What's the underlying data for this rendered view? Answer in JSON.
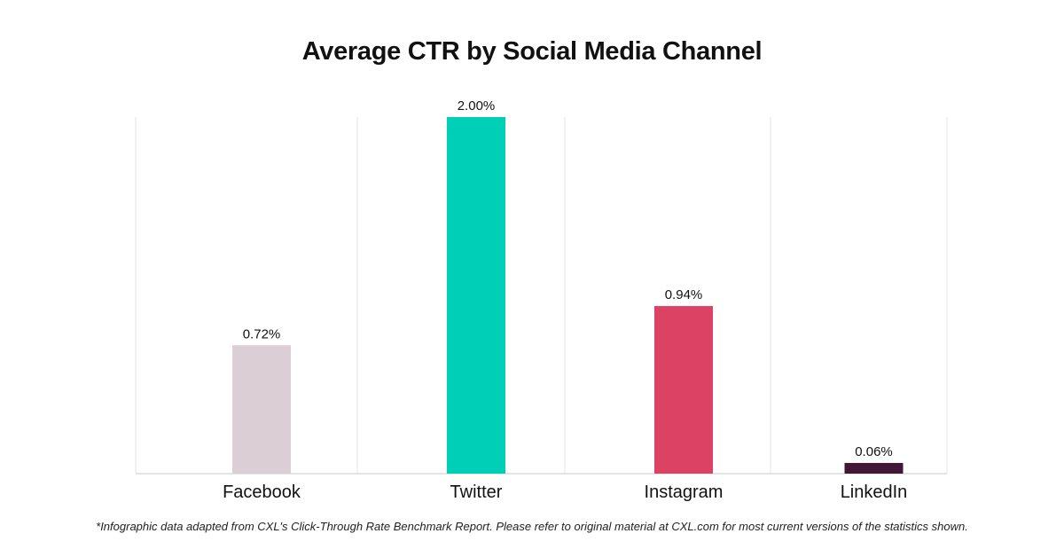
{
  "chart_data": {
    "type": "bar",
    "title": "Average CTR by Social Media Channel",
    "categories": [
      "Facebook",
      "Twitter",
      "Instagram",
      "LinkedIn"
    ],
    "values": [
      0.72,
      2.0,
      0.94,
      0.06
    ],
    "data_labels": [
      "0.72%",
      "2.00%",
      "0.94%",
      "0.06%"
    ],
    "colors": [
      "#dbcfd5",
      "#00cfb7",
      "#db4264",
      "#401735"
    ],
    "xlabel": "",
    "ylabel": "",
    "ylim": [
      0,
      2.0
    ],
    "grid": "vertical separators",
    "legend": "none"
  },
  "footnote": "*Infographic data adapted from CXL's Click-Through Rate Benchmark Report. Please refer to original material at CXL.com for most current versions of the statistics shown."
}
